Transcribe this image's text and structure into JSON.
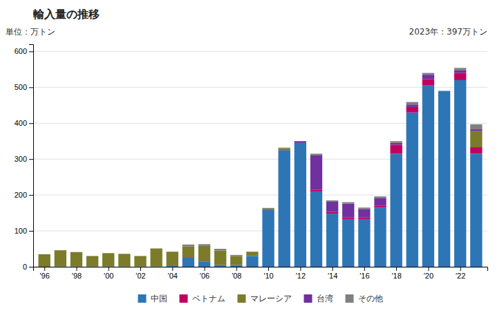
{
  "chart_data": {
    "type": "bar",
    "stacked": true,
    "title": "輸入量の推移",
    "ylabel": "単位：万トン",
    "annotation": "2023年：397万トン",
    "x": [
      1996,
      1997,
      1998,
      1999,
      2000,
      2001,
      2002,
      2003,
      2004,
      2005,
      2006,
      2007,
      2008,
      2009,
      2010,
      2011,
      2012,
      2013,
      2014,
      2015,
      2016,
      2017,
      2018,
      2019,
      2020,
      2021,
      2022,
      2023
    ],
    "series": [
      {
        "name": "中国",
        "color": "#2E75B6",
        "values": [
          0,
          1,
          1,
          1,
          1,
          1,
          1,
          1,
          2,
          25,
          15,
          5,
          5,
          30,
          158,
          325,
          345,
          210,
          148,
          133,
          133,
          165,
          315,
          430,
          505,
          490,
          520,
          315
        ]
      },
      {
        "name": "ベトナム",
        "color": "#C00060",
        "values": [
          0,
          0,
          0,
          0,
          0,
          0,
          0,
          0,
          0,
          0,
          0,
          0,
          0,
          0,
          0,
          0,
          0,
          5,
          5,
          5,
          5,
          5,
          25,
          15,
          18,
          0,
          20,
          18
        ]
      },
      {
        "name": "マレーシア",
        "color": "#7B7B2A",
        "values": [
          35,
          45,
          40,
          29,
          37,
          35,
          29,
          50,
          40,
          32,
          43,
          40,
          25,
          12,
          4,
          5,
          0,
          0,
          0,
          0,
          0,
          0,
          0,
          0,
          0,
          0,
          0,
          45
        ]
      },
      {
        "name": "台湾",
        "color": "#7030A0",
        "values": [
          0,
          0,
          0,
          0,
          0,
          0,
          0,
          0,
          0,
          0,
          0,
          0,
          0,
          0,
          0,
          0,
          5,
          95,
          28,
          38,
          23,
          22,
          5,
          7,
          12,
          0,
          7,
          5
        ]
      },
      {
        "name": "その他",
        "color": "#808080",
        "values": [
          0,
          0,
          0,
          0,
          0,
          0,
          0,
          0,
          0,
          5,
          5,
          5,
          3,
          0,
          2,
          2,
          0,
          5,
          4,
          4,
          4,
          4,
          5,
          7,
          5,
          0,
          7,
          14
        ]
      }
    ],
    "xlim": [
      1995.3,
      2023.7
    ],
    "xticks": [
      {
        "value": 1996,
        "label": "'96"
      },
      {
        "value": 1998,
        "label": "'98"
      },
      {
        "value": 2000,
        "label": "'00"
      },
      {
        "value": 2002,
        "label": "'02"
      },
      {
        "value": 2004,
        "label": "'04"
      },
      {
        "value": 2006,
        "label": "'06"
      },
      {
        "value": 2008,
        "label": "'08"
      },
      {
        "value": 2010,
        "label": "'10"
      },
      {
        "value": 2012,
        "label": "'12"
      },
      {
        "value": 2014,
        "label": "'14"
      },
      {
        "value": 2016,
        "label": "'16"
      },
      {
        "value": 2018,
        "label": "'18"
      },
      {
        "value": 2020,
        "label": "'20"
      },
      {
        "value": 2022,
        "label": "'22"
      }
    ],
    "ylim": [
      0,
      620
    ],
    "yticks": [
      0,
      100,
      200,
      300,
      400,
      500,
      600
    ],
    "grid": true,
    "legend": "bottom"
  }
}
